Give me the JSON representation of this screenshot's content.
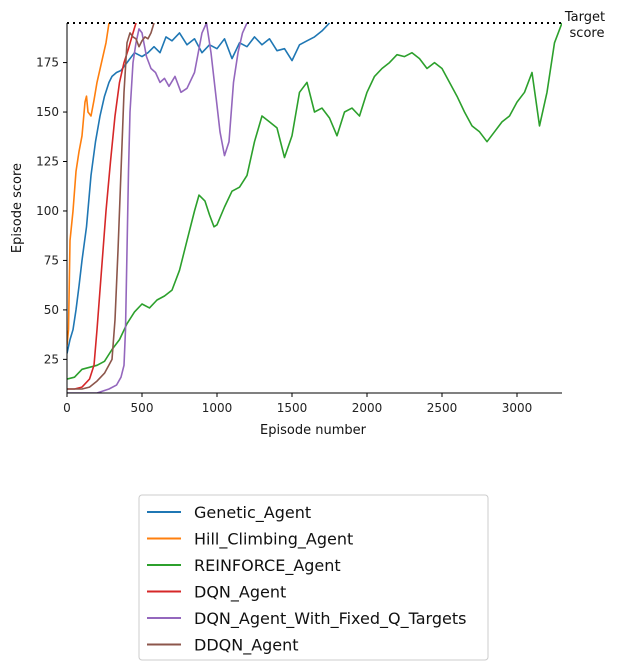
{
  "chart_data": {
    "type": "line",
    "xlabel": "Episode number",
    "ylabel": "Episode score",
    "xlim": [
      0,
      3300
    ],
    "ylim": [
      8,
      195
    ],
    "xticks": [
      0,
      500,
      1000,
      1500,
      2000,
      2500,
      3000
    ],
    "yticks": [
      25,
      50,
      75,
      100,
      125,
      150,
      175
    ],
    "target": {
      "value": 195,
      "label_line1": "Target",
      "label_line2": "score"
    },
    "legend_position": "below",
    "grid": false,
    "series": [
      {
        "name": "Genetic_Agent",
        "color": "#1f77b4",
        "x": [
          0,
          20,
          40,
          60,
          80,
          100,
          130,
          160,
          190,
          220,
          250,
          280,
          300,
          330,
          360,
          400,
          450,
          500,
          540,
          580,
          620,
          660,
          700,
          750,
          800,
          850,
          900,
          950,
          1000,
          1050,
          1100,
          1150,
          1200,
          1250,
          1300,
          1350,
          1400,
          1450,
          1500,
          1550,
          1600,
          1650,
          1700,
          1750
        ],
        "y": [
          28,
          35,
          40,
          50,
          62,
          75,
          92,
          118,
          135,
          148,
          158,
          165,
          168,
          170,
          171,
          175,
          180,
          178,
          180,
          183,
          180,
          188,
          186,
          190,
          184,
          187,
          180,
          184,
          182,
          187,
          177,
          185,
          183,
          188,
          184,
          187,
          181,
          182,
          176,
          184,
          186,
          188,
          191,
          195
        ]
      },
      {
        "name": "Hill_Climbing_Agent",
        "color": "#ff7f0e",
        "x": [
          0,
          10,
          20,
          40,
          60,
          80,
          100,
          120,
          130,
          140,
          160,
          180,
          200,
          230,
          260,
          280
        ],
        "y": [
          32,
          40,
          85,
          100,
          120,
          130,
          138,
          155,
          158,
          150,
          148,
          156,
          165,
          175,
          185,
          195
        ]
      },
      {
        "name": "REINFORCE_Agent",
        "color": "#2ca02c",
        "x": [
          0,
          50,
          100,
          150,
          200,
          250,
          300,
          350,
          400,
          450,
          500,
          550,
          600,
          650,
          700,
          750,
          800,
          850,
          880,
          920,
          950,
          980,
          1000,
          1050,
          1100,
          1150,
          1200,
          1250,
          1300,
          1350,
          1400,
          1450,
          1500,
          1550,
          1600,
          1650,
          1700,
          1750,
          1800,
          1850,
          1900,
          1950,
          2000,
          2050,
          2100,
          2150,
          2200,
          2250,
          2300,
          2350,
          2400,
          2450,
          2500,
          2550,
          2600,
          2650,
          2700,
          2750,
          2800,
          2850,
          2900,
          2950,
          3000,
          3050,
          3100,
          3150,
          3200,
          3250,
          3300
        ],
        "y": [
          15,
          16,
          20,
          21,
          22,
          24,
          30,
          35,
          43,
          49,
          53,
          51,
          55,
          57,
          60,
          70,
          85,
          100,
          108,
          105,
          98,
          92,
          93,
          102,
          110,
          112,
          118,
          135,
          148,
          145,
          142,
          127,
          138,
          160,
          165,
          150,
          152,
          147,
          138,
          150,
          152,
          148,
          160,
          168,
          172,
          175,
          179,
          178,
          180,
          177,
          172,
          175,
          172,
          165,
          158,
          150,
          143,
          140,
          135,
          140,
          145,
          148,
          155,
          160,
          170,
          143,
          160,
          185,
          195
        ]
      },
      {
        "name": "DQN_Agent",
        "color": "#d62728",
        "x": [
          0,
          50,
          100,
          150,
          180,
          200,
          230,
          260,
          290,
          320,
          350,
          380,
          410,
          440,
          460
        ],
        "y": [
          10,
          10,
          11,
          15,
          22,
          40,
          70,
          100,
          125,
          148,
          165,
          175,
          182,
          190,
          195
        ]
      },
      {
        "name": "DQN_Agent_With_Fixed_Q_Targets",
        "color": "#9467bd",
        "x": [
          0,
          100,
          200,
          280,
          330,
          360,
          380,
          390,
          400,
          410,
          420,
          440,
          460,
          480,
          500,
          530,
          560,
          590,
          620,
          650,
          680,
          720,
          760,
          800,
          850,
          900,
          930,
          960,
          990,
          1020,
          1050,
          1080,
          1110,
          1140,
          1170,
          1200
        ],
        "y": [
          8,
          8,
          8,
          10,
          12,
          16,
          22,
          40,
          80,
          120,
          150,
          175,
          185,
          192,
          190,
          178,
          172,
          170,
          165,
          167,
          163,
          168,
          160,
          162,
          170,
          190,
          195,
          180,
          160,
          140,
          128,
          135,
          165,
          180,
          190,
          195
        ]
      },
      {
        "name": "DDQN_Agent",
        "color": "#8c564b",
        "x": [
          0,
          50,
          100,
          150,
          200,
          250,
          300,
          320,
          340,
          360,
          380,
          400,
          420,
          440,
          460,
          480,
          500,
          520,
          540,
          560,
          580
        ],
        "y": [
          10,
          10,
          10,
          11,
          14,
          18,
          25,
          45,
          80,
          120,
          160,
          185,
          190,
          188,
          187,
          183,
          186,
          188,
          187,
          190,
          195
        ]
      }
    ]
  }
}
